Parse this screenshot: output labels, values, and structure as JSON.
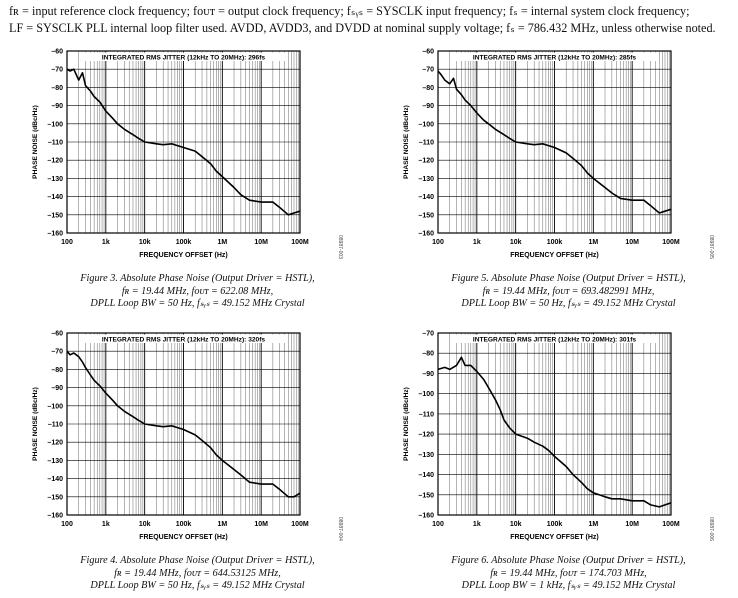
{
  "header": {
    "line1": "fʀ = input reference clock frequency; fᴏᴜᴛ = output clock frequency; fₛᵧₛ = SYSCLK input frequency; fₛ = internal system clock frequency;",
    "line2": "LF = SYSCLK PLL internal loop filter used. AVDD, AVDD3, and DVDD at nominal supply voltage; fₛ = 786.432 MHz, unless otherwise noted."
  },
  "figures": [
    {
      "caption": [
        "Figure 3. Absolute Phase Noise (Output Driver = HSTL),",
        "fʀ = 19.44 MHz, fᴏᴜᴛ = 622.08 MHz,",
        "DPLL Loop BW = 50 Hz, fₛᵧₛ = 49.152 MHz Crystal"
      ],
      "code": "08987-003"
    },
    {
      "caption": [
        "Figure 5. Absolute Phase Noise (Output Driver = HSTL),",
        "fʀ = 19.44 MHz, fᴏᴜᴛ = 693.482991 MHz,",
        "DPLL Loop BW = 50 Hz, fₛᵧₛ = 49.152 MHz Crystal"
      ],
      "code": "08987-005"
    },
    {
      "caption": [
        "Figure 4. Absolute Phase Noise (Output Driver = HSTL),",
        "fʀ = 19.44 MHz, fᴏᴜᴛ = 644.53125 MHz,",
        "DPLL Loop BW = 50 Hz, fₛᵧₛ = 49.152 MHz Crystal"
      ],
      "code": "08987-004"
    },
    {
      "caption": [
        "Figure 6. Absolute Phase Noise (Output Driver = HSTL),",
        "fʀ = 19.44 MHz, fᴏᴜᴛ = 174.703 MHz,",
        "DPLL Loop BW = 1 kHz, fₛᵧₛ = 49.152 MHz Crystal"
      ],
      "code": "08987-006"
    }
  ],
  "chart_data": [
    {
      "type": "line",
      "title": "INTEGRATED RMS JITTER (12kHz TO 20MHz): 296fs",
      "xlabel": "FREQUENCY OFFSET (Hz)",
      "ylabel": "PHASE NOISE (dBc/Hz)",
      "x_scale": "log",
      "xlim": [
        100,
        100000000
      ],
      "ylim": [
        -160,
        -60
      ],
      "grid": true,
      "x_ticks": [
        100,
        1000,
        10000,
        100000,
        1000000,
        10000000,
        100000000
      ],
      "x_tick_labels": [
        "100",
        "1k",
        "10k",
        "100k",
        "1M",
        "10M",
        "100M"
      ],
      "y_ticks": [
        -60,
        -70,
        -80,
        -90,
        -100,
        -110,
        -120,
        -130,
        -140,
        -150,
        -160
      ],
      "series": [
        {
          "x": [
            100,
            120,
            150,
            200,
            250,
            300,
            400,
            500,
            700,
            1000,
            1500,
            2000,
            3000,
            5000,
            7000,
            10000,
            20000,
            30000,
            50000,
            70000,
            100000,
            200000,
            300000,
            500000,
            700000,
            1000000,
            2000000,
            3000000,
            5000000,
            10000000,
            20000000,
            30000000,
            50000000,
            70000000,
            100000000
          ],
          "y": [
            -70,
            -71,
            -70,
            -76,
            -72,
            -79,
            -82,
            -85,
            -88,
            -93,
            -97,
            -100,
            -103,
            -106,
            -108,
            -110,
            -111,
            -111.5,
            -111,
            -112,
            -113,
            -115,
            -118,
            -122,
            -126,
            -129,
            -135,
            -139,
            -142,
            -143,
            -143,
            -146,
            -150,
            -149,
            -148
          ]
        }
      ]
    },
    {
      "type": "line",
      "title": "INTEGRATED RMS JITTER (12kHz TO 20MHz): 285fs",
      "xlabel": "FREQUENCY OFFSET (Hz)",
      "ylabel": "PHASE NOISE (dBc/Hz)",
      "x_scale": "log",
      "xlim": [
        100,
        100000000
      ],
      "ylim": [
        -160,
        -60
      ],
      "grid": true,
      "x_ticks": [
        100,
        1000,
        10000,
        100000,
        1000000,
        10000000,
        100000000
      ],
      "x_tick_labels": [
        "100",
        "1k",
        "10k",
        "100k",
        "1M",
        "10M",
        "100M"
      ],
      "y_ticks": [
        -60,
        -70,
        -80,
        -90,
        -100,
        -110,
        -120,
        -130,
        -140,
        -150,
        -160
      ],
      "series": [
        {
          "x": [
            100,
            120,
            150,
            200,
            250,
            300,
            400,
            500,
            700,
            1000,
            1500,
            2000,
            3000,
            5000,
            7000,
            10000,
            20000,
            30000,
            50000,
            70000,
            100000,
            200000,
            300000,
            500000,
            700000,
            1000000,
            2000000,
            3000000,
            5000000,
            10000000,
            20000000,
            30000000,
            50000000,
            70000000,
            100000000
          ],
          "y": [
            -71,
            -73,
            -76,
            -78,
            -75,
            -81,
            -84,
            -87,
            -90,
            -94,
            -98,
            -100,
            -103,
            -106,
            -108,
            -110,
            -111,
            -111.5,
            -111,
            -112,
            -113,
            -116,
            -119,
            -123,
            -127,
            -130,
            -135,
            -138,
            -141,
            -142,
            -142,
            -145,
            -149,
            -148,
            -147
          ]
        }
      ]
    },
    {
      "type": "line",
      "title": "INTEGRATED RMS JITTER (12kHz TO 20MHz): 320fs",
      "xlabel": "FREQUENCY OFFSET (Hz)",
      "ylabel": "PHASE NOISE (dBc/Hz)",
      "x_scale": "log",
      "xlim": [
        100,
        100000000
      ],
      "ylim": [
        -160,
        -60
      ],
      "grid": true,
      "x_ticks": [
        100,
        1000,
        10000,
        100000,
        1000000,
        10000000,
        100000000
      ],
      "x_tick_labels": [
        "100",
        "1k",
        "10k",
        "100k",
        "1M",
        "10M",
        "100M"
      ],
      "y_ticks": [
        -60,
        -70,
        -80,
        -90,
        -100,
        -110,
        -120,
        -130,
        -140,
        -150,
        -160
      ],
      "series": [
        {
          "x": [
            100,
            120,
            150,
            200,
            250,
            300,
            400,
            500,
            700,
            1000,
            1500,
            2000,
            3000,
            5000,
            7000,
            10000,
            20000,
            30000,
            50000,
            70000,
            100000,
            200000,
            300000,
            500000,
            700000,
            1000000,
            2000000,
            3000000,
            5000000,
            10000000,
            20000000,
            30000000,
            50000000,
            70000000,
            100000000
          ],
          "y": [
            -70,
            -72,
            -71,
            -73,
            -76,
            -79,
            -83,
            -86,
            -89,
            -93,
            -97,
            -100,
            -103,
            -106,
            -108,
            -110,
            -111,
            -111.5,
            -111,
            -112,
            -113,
            -116,
            -119,
            -123,
            -127,
            -130,
            -135,
            -138,
            -142,
            -143,
            -143,
            -146,
            -150,
            -150,
            -148
          ]
        }
      ]
    },
    {
      "type": "line",
      "title": "INTEGRATED RMS JITTER (12kHz TO 20MHz): 301fs",
      "xlabel": "FREQUENCY OFFSET (Hz)",
      "ylabel": "PHASE NOISE (dBc/Hz)",
      "x_scale": "log",
      "xlim": [
        100,
        100000000
      ],
      "ylim": [
        -160,
        -70
      ],
      "grid": true,
      "x_ticks": [
        100,
        1000,
        10000,
        100000,
        1000000,
        10000000,
        100000000
      ],
      "x_tick_labels": [
        "100",
        "1k",
        "10k",
        "100k",
        "1M",
        "10M",
        "100M"
      ],
      "y_ticks": [
        -70,
        -80,
        -90,
        -100,
        -110,
        -120,
        -130,
        -140,
        -150,
        -160
      ],
      "series": [
        {
          "x": [
            100,
            150,
            200,
            300,
            400,
            500,
            700,
            1000,
            1500,
            2000,
            3000,
            4000,
            5000,
            7000,
            10000,
            20000,
            30000,
            50000,
            70000,
            100000,
            200000,
            300000,
            500000,
            700000,
            1000000,
            2000000,
            3000000,
            5000000,
            10000000,
            20000000,
            30000000,
            50000000,
            70000000,
            100000000
          ],
          "y": [
            -88,
            -87,
            -88,
            -86,
            -82,
            -86,
            -86,
            -89,
            -93,
            -97,
            -103,
            -108,
            -113,
            -117,
            -120,
            -122,
            -124,
            -126,
            -128,
            -131,
            -136,
            -140,
            -144,
            -147,
            -149,
            -151,
            -152,
            -152,
            -153,
            -153,
            -155,
            -156,
            -155,
            -154
          ]
        }
      ]
    }
  ]
}
